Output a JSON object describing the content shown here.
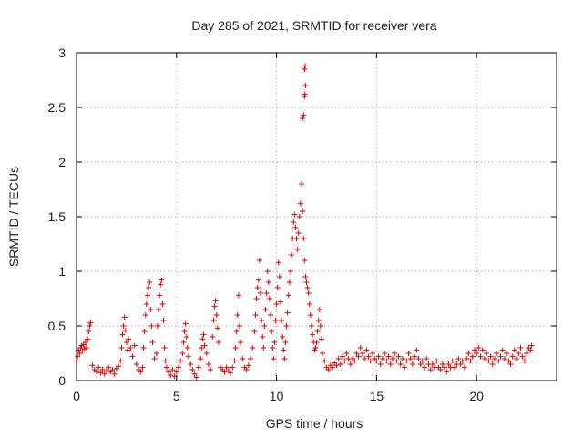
{
  "chart_data": {
    "type": "scatter",
    "title": "Day 285 of 2021, SRMTID for receiver vera",
    "xlabel": "GPS time / hours",
    "ylabel": "SRMTID / TECUs",
    "xlim": [
      0,
      24
    ],
    "ylim": [
      0,
      3
    ],
    "x_ticks": [
      0,
      5,
      10,
      15,
      20
    ],
    "x_tick_labels": [
      "0",
      "5",
      "10",
      "15",
      "20"
    ],
    "y_ticks": [
      0,
      0.5,
      1,
      1.5,
      2,
      2.5,
      3
    ],
    "y_tick_labels": [
      "0",
      "0.5",
      "1",
      "1.5",
      "2",
      "2.5",
      "3"
    ],
    "grid": true,
    "marker": "+",
    "color": "#e00000",
    "series": [
      {
        "name": "vera",
        "points": [
          [
            0.0,
            0.18
          ],
          [
            0.05,
            0.22
          ],
          [
            0.1,
            0.28
          ],
          [
            0.15,
            0.25
          ],
          [
            0.2,
            0.3
          ],
          [
            0.25,
            0.32
          ],
          [
            0.3,
            0.27
          ],
          [
            0.35,
            0.33
          ],
          [
            0.4,
            0.29
          ],
          [
            0.45,
            0.35
          ],
          [
            0.5,
            0.3
          ],
          [
            0.55,
            0.38
          ],
          [
            0.6,
            0.45
          ],
          [
            0.65,
            0.5
          ],
          [
            0.7,
            0.53
          ],
          [
            0.8,
            0.14
          ],
          [
            0.9,
            0.1
          ],
          [
            1.0,
            0.08
          ],
          [
            1.1,
            0.12
          ],
          [
            1.2,
            0.07
          ],
          [
            1.3,
            0.1
          ],
          [
            1.4,
            0.06
          ],
          [
            1.5,
            0.09
          ],
          [
            1.6,
            0.12
          ],
          [
            1.7,
            0.08
          ],
          [
            1.8,
            0.1
          ],
          [
            1.9,
            0.06
          ],
          [
            2.0,
            0.11
          ],
          [
            2.1,
            0.13
          ],
          [
            2.2,
            0.18
          ],
          [
            2.25,
            0.3
          ],
          [
            2.3,
            0.42
          ],
          [
            2.35,
            0.5
          ],
          [
            2.4,
            0.58
          ],
          [
            2.45,
            0.46
          ],
          [
            2.5,
            0.35
          ],
          [
            2.55,
            0.28
          ],
          [
            2.6,
            0.38
          ],
          [
            2.7,
            0.3
          ],
          [
            2.8,
            0.22
          ],
          [
            2.9,
            0.32
          ],
          [
            3.0,
            0.15
          ],
          [
            3.1,
            0.1
          ],
          [
            3.2,
            0.08
          ],
          [
            3.3,
            0.12
          ],
          [
            3.35,
            0.3
          ],
          [
            3.4,
            0.45
          ],
          [
            3.45,
            0.6
          ],
          [
            3.5,
            0.7
          ],
          [
            3.55,
            0.78
          ],
          [
            3.6,
            0.85
          ],
          [
            3.65,
            0.9
          ],
          [
            3.7,
            0.65
          ],
          [
            3.75,
            0.5
          ],
          [
            3.8,
            0.35
          ],
          [
            3.9,
            0.2
          ],
          [
            4.0,
            0.25
          ],
          [
            4.05,
            0.5
          ],
          [
            4.1,
            0.65
          ],
          [
            4.15,
            0.78
          ],
          [
            4.2,
            0.88
          ],
          [
            4.25,
            0.92
          ],
          [
            4.3,
            0.7
          ],
          [
            4.35,
            0.55
          ],
          [
            4.4,
            0.3
          ],
          [
            4.45,
            0.18
          ],
          [
            4.5,
            0.12
          ],
          [
            4.6,
            0.08
          ],
          [
            4.7,
            0.05
          ],
          [
            4.8,
            0.1
          ],
          [
            4.9,
            0.04
          ],
          [
            5.0,
            0.08
          ],
          [
            5.1,
            0.12
          ],
          [
            5.2,
            0.18
          ],
          [
            5.3,
            0.25
          ],
          [
            5.35,
            0.35
          ],
          [
            5.4,
            0.45
          ],
          [
            5.45,
            0.52
          ],
          [
            5.5,
            0.4
          ],
          [
            5.55,
            0.3
          ],
          [
            5.6,
            0.22
          ],
          [
            5.7,
            0.15
          ],
          [
            5.8,
            0.1
          ],
          [
            5.9,
            0.06
          ],
          [
            6.0,
            0.03
          ],
          [
            6.1,
            0.12
          ],
          [
            6.2,
            0.2
          ],
          [
            6.25,
            0.3
          ],
          [
            6.3,
            0.38
          ],
          [
            6.35,
            0.42
          ],
          [
            6.4,
            0.32
          ],
          [
            6.5,
            0.25
          ],
          [
            6.6,
            0.15
          ],
          [
            6.7,
            0.1
          ],
          [
            6.8,
            0.4
          ],
          [
            6.85,
            0.55
          ],
          [
            6.9,
            0.68
          ],
          [
            6.95,
            0.73
          ],
          [
            7.0,
            0.6
          ],
          [
            7.05,
            0.48
          ],
          [
            7.1,
            0.35
          ],
          [
            7.2,
            0.12
          ],
          [
            7.3,
            0.1
          ],
          [
            7.4,
            0.08
          ],
          [
            7.5,
            0.12
          ],
          [
            7.6,
            0.09
          ],
          [
            7.7,
            0.07
          ],
          [
            7.8,
            0.12
          ],
          [
            7.9,
            0.18
          ],
          [
            7.95,
            0.3
          ],
          [
            8.0,
            0.45
          ],
          [
            8.05,
            0.6
          ],
          [
            8.1,
            0.78
          ],
          [
            8.15,
            0.5
          ],
          [
            8.2,
            0.35
          ],
          [
            8.3,
            0.2
          ],
          [
            8.4,
            0.12
          ],
          [
            8.5,
            0.1
          ],
          [
            8.6,
            0.14
          ],
          [
            8.7,
            0.2
          ],
          [
            8.8,
            0.3
          ],
          [
            8.9,
            0.45
          ],
          [
            8.95,
            0.6
          ],
          [
            9.0,
            0.75
          ],
          [
            9.05,
            0.85
          ],
          [
            9.1,
            0.92
          ],
          [
            9.15,
            1.1
          ],
          [
            9.2,
            0.8
          ],
          [
            9.25,
            0.55
          ],
          [
            9.3,
            0.4
          ],
          [
            9.35,
            0.3
          ],
          [
            9.4,
            0.5
          ],
          [
            9.45,
            0.65
          ],
          [
            9.5,
            0.8
          ],
          [
            9.55,
            1.0
          ],
          [
            9.6,
            0.9
          ],
          [
            9.65,
            0.75
          ],
          [
            9.7,
            0.6
          ],
          [
            9.75,
            0.45
          ],
          [
            9.8,
            0.3
          ],
          [
            9.85,
            0.2
          ],
          [
            9.9,
            0.35
          ],
          [
            9.95,
            0.55
          ],
          [
            10.0,
            0.7
          ],
          [
            10.05,
            0.85
          ],
          [
            10.1,
            1.08
          ],
          [
            10.15,
            0.95
          ],
          [
            10.2,
            0.72
          ],
          [
            10.25,
            0.55
          ],
          [
            10.3,
            0.4
          ],
          [
            10.35,
            0.28
          ],
          [
            10.4,
            0.2
          ],
          [
            10.45,
            0.35
          ],
          [
            10.5,
            0.5
          ],
          [
            10.55,
            0.62
          ],
          [
            10.6,
            0.78
          ],
          [
            10.65,
            0.9
          ],
          [
            10.7,
            1.0
          ],
          [
            10.75,
            1.15
          ],
          [
            10.8,
            1.3
          ],
          [
            10.85,
            1.45
          ],
          [
            10.9,
            1.52
          ],
          [
            10.95,
            1.4
          ],
          [
            11.0,
            1.3
          ],
          [
            11.05,
            1.2
          ],
          [
            11.1,
            1.35
          ],
          [
            11.15,
            1.5
          ],
          [
            11.2,
            1.62
          ],
          [
            11.25,
            1.8
          ],
          [
            11.3,
            1.55
          ],
          [
            11.35,
            1.3
          ],
          [
            11.4,
            1.1
          ],
          [
            11.45,
            0.95
          ],
          [
            11.5,
            0.9
          ],
          [
            11.55,
            0.85
          ],
          [
            11.3,
            2.4
          ],
          [
            11.35,
            2.43
          ],
          [
            11.4,
            2.6
          ],
          [
            11.42,
            2.62
          ],
          [
            11.45,
            2.7
          ],
          [
            11.4,
            2.85
          ],
          [
            11.43,
            2.88
          ],
          [
            11.6,
            0.8
          ],
          [
            11.65,
            0.7
          ],
          [
            11.7,
            0.6
          ],
          [
            11.75,
            0.5
          ],
          [
            11.8,
            0.42
          ],
          [
            11.85,
            0.35
          ],
          [
            11.9,
            0.28
          ],
          [
            11.95,
            0.3
          ],
          [
            12.0,
            0.35
          ],
          [
            12.05,
            0.45
          ],
          [
            12.1,
            0.55
          ],
          [
            12.15,
            0.65
          ],
          [
            12.2,
            0.5
          ],
          [
            12.25,
            0.38
          ],
          [
            12.3,
            0.25
          ],
          [
            12.4,
            0.18
          ],
          [
            12.5,
            0.12
          ],
          [
            12.6,
            0.1
          ],
          [
            12.7,
            0.14
          ],
          [
            12.8,
            0.12
          ],
          [
            12.9,
            0.16
          ],
          [
            13.0,
            0.14
          ],
          [
            13.1,
            0.2
          ],
          [
            13.2,
            0.15
          ],
          [
            13.3,
            0.22
          ],
          [
            13.4,
            0.18
          ],
          [
            13.5,
            0.25
          ],
          [
            13.6,
            0.2
          ],
          [
            13.7,
            0.15
          ],
          [
            13.8,
            0.2
          ],
          [
            13.9,
            0.18
          ],
          [
            14.0,
            0.25
          ],
          [
            14.1,
            0.22
          ],
          [
            14.2,
            0.3
          ],
          [
            14.3,
            0.25
          ],
          [
            14.4,
            0.2
          ],
          [
            14.5,
            0.28
          ],
          [
            14.6,
            0.22
          ],
          [
            14.7,
            0.18
          ],
          [
            14.8,
            0.25
          ],
          [
            14.9,
            0.2
          ],
          [
            15.0,
            0.18
          ],
          [
            15.1,
            0.22
          ],
          [
            15.2,
            0.15
          ],
          [
            15.3,
            0.2
          ],
          [
            15.4,
            0.25
          ],
          [
            15.5,
            0.18
          ],
          [
            15.6,
            0.22
          ],
          [
            15.7,
            0.15
          ],
          [
            15.8,
            0.2
          ],
          [
            15.9,
            0.25
          ],
          [
            16.0,
            0.18
          ],
          [
            16.1,
            0.22
          ],
          [
            16.2,
            0.15
          ],
          [
            16.3,
            0.2
          ],
          [
            16.4,
            0.12
          ],
          [
            16.5,
            0.18
          ],
          [
            16.6,
            0.25
          ],
          [
            16.7,
            0.2
          ],
          [
            16.8,
            0.15
          ],
          [
            16.9,
            0.22
          ],
          [
            17.0,
            0.28
          ],
          [
            17.1,
            0.2
          ],
          [
            17.2,
            0.15
          ],
          [
            17.3,
            0.18
          ],
          [
            17.4,
            0.12
          ],
          [
            17.5,
            0.2
          ],
          [
            17.6,
            0.15
          ],
          [
            17.7,
            0.1
          ],
          [
            17.8,
            0.15
          ],
          [
            17.9,
            0.12
          ],
          [
            18.0,
            0.18
          ],
          [
            18.1,
            0.12
          ],
          [
            18.2,
            0.1
          ],
          [
            18.3,
            0.15
          ],
          [
            18.4,
            0.12
          ],
          [
            18.5,
            0.08
          ],
          [
            18.6,
            0.15
          ],
          [
            18.7,
            0.12
          ],
          [
            18.8,
            0.18
          ],
          [
            18.9,
            0.12
          ],
          [
            19.0,
            0.15
          ],
          [
            19.1,
            0.2
          ],
          [
            19.2,
            0.15
          ],
          [
            19.3,
            0.18
          ],
          [
            19.4,
            0.12
          ],
          [
            19.5,
            0.2
          ],
          [
            19.6,
            0.25
          ],
          [
            19.7,
            0.18
          ],
          [
            19.8,
            0.22
          ],
          [
            19.9,
            0.28
          ],
          [
            20.0,
            0.25
          ],
          [
            20.1,
            0.3
          ],
          [
            20.2,
            0.22
          ],
          [
            20.3,
            0.28
          ],
          [
            20.4,
            0.2
          ],
          [
            20.5,
            0.25
          ],
          [
            20.6,
            0.18
          ],
          [
            20.7,
            0.22
          ],
          [
            20.8,
            0.15
          ],
          [
            20.9,
            0.2
          ],
          [
            21.0,
            0.25
          ],
          [
            21.1,
            0.18
          ],
          [
            21.2,
            0.22
          ],
          [
            21.3,
            0.28
          ],
          [
            21.4,
            0.2
          ],
          [
            21.5,
            0.25
          ],
          [
            21.6,
            0.18
          ],
          [
            21.7,
            0.15
          ],
          [
            21.8,
            0.22
          ],
          [
            21.9,
            0.28
          ],
          [
            22.0,
            0.2
          ],
          [
            22.1,
            0.25
          ],
          [
            22.2,
            0.3
          ],
          [
            22.3,
            0.22
          ],
          [
            22.4,
            0.18
          ],
          [
            22.5,
            0.25
          ],
          [
            22.6,
            0.3
          ],
          [
            22.7,
            0.28
          ],
          [
            22.75,
            0.32
          ]
        ]
      }
    ]
  }
}
